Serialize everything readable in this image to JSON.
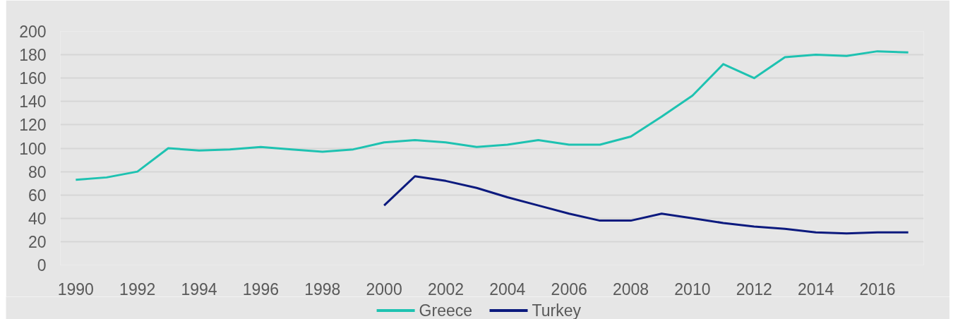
{
  "chart_data": {
    "type": "line",
    "x": [
      1990,
      1991,
      1992,
      1993,
      1994,
      1995,
      1996,
      1997,
      1998,
      1999,
      2000,
      2001,
      2002,
      2003,
      2004,
      2005,
      2006,
      2007,
      2008,
      2009,
      2010,
      2011,
      2012,
      2013,
      2014,
      2015,
      2016,
      2017
    ],
    "series": [
      {
        "name": "Greece",
        "color": "#1ec2b1",
        "values": [
          73,
          75,
          80,
          100,
          98,
          99,
          101,
          99,
          97,
          99,
          105,
          107,
          105,
          101,
          103,
          107,
          103,
          103,
          110,
          127,
          145,
          172,
          160,
          178,
          180,
          179,
          183,
          182
        ]
      },
      {
        "name": "Turkey",
        "color": "#0c1a7e",
        "values": [
          null,
          null,
          null,
          null,
          null,
          null,
          null,
          null,
          null,
          null,
          51,
          76,
          72,
          66,
          58,
          51,
          44,
          38,
          38,
          44,
          40,
          36,
          33,
          31,
          28,
          27,
          28,
          28
        ]
      }
    ],
    "xlim": [
      1989.5,
      2017.5
    ],
    "ylim": [
      0,
      200
    ],
    "xticks": [
      1990,
      1992,
      1994,
      1996,
      1998,
      2000,
      2002,
      2004,
      2006,
      2008,
      2010,
      2012,
      2014,
      2016
    ],
    "yticks": [
      0,
      20,
      40,
      60,
      80,
      100,
      120,
      140,
      160,
      180,
      200
    ],
    "grid": "y",
    "legend": "bottom"
  }
}
